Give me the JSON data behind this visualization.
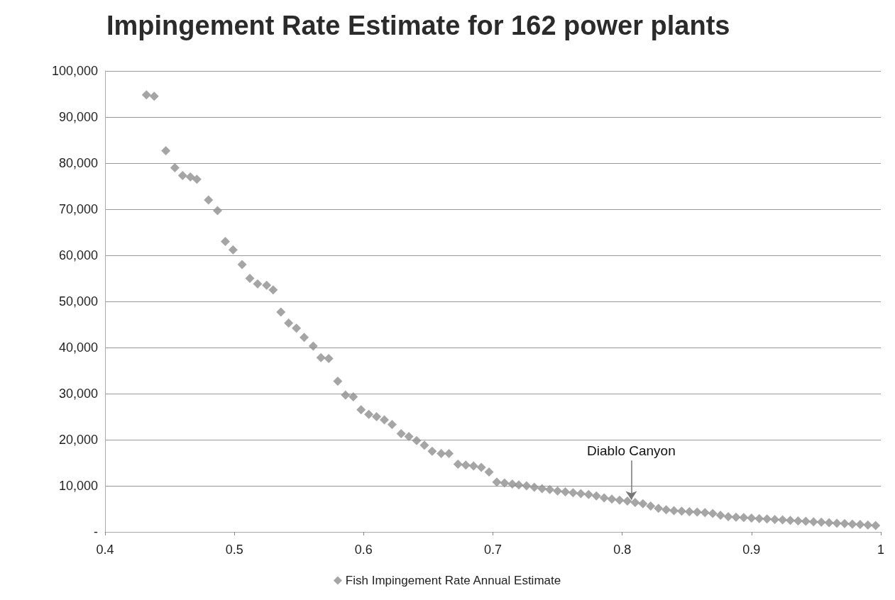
{
  "chart_data": {
    "type": "scatter",
    "title": "Impingement Rate Estimate for 162 power plants",
    "x": [
      0.432,
      0.438,
      0.447,
      0.454,
      0.46,
      0.466,
      0.471,
      0.48,
      0.487,
      0.493,
      0.499,
      0.506,
      0.512,
      0.518,
      0.525,
      0.53,
      0.536,
      0.542,
      0.548,
      0.554,
      0.561,
      0.567,
      0.573,
      0.58,
      0.586,
      0.592,
      0.598,
      0.604,
      0.61,
      0.616,
      0.622,
      0.629,
      0.635,
      0.641,
      0.647,
      0.653,
      0.66,
      0.666,
      0.673,
      0.679,
      0.685,
      0.691,
      0.697,
      0.703,
      0.709,
      0.715,
      0.72,
      0.726,
      0.732,
      0.738,
      0.744,
      0.75,
      0.756,
      0.762,
      0.768,
      0.774,
      0.78,
      0.786,
      0.792,
      0.798,
      0.804,
      0.81,
      0.816,
      0.822,
      0.828,
      0.834,
      0.84,
      0.846,
      0.852,
      0.858,
      0.864,
      0.87,
      0.876,
      0.882,
      0.888,
      0.894,
      0.9,
      0.906,
      0.912,
      0.918,
      0.924,
      0.93,
      0.936,
      0.942,
      0.948,
      0.954,
      0.96,
      0.966,
      0.972,
      0.978,
      0.984,
      0.99,
      0.996
    ],
    "series": [
      {
        "name": "Fish Impingement Rate Annual Estimate",
        "color": "#8f8f8f",
        "values": [
          94800,
          94500,
          82700,
          79000,
          77300,
          77000,
          76500,
          72000,
          69700,
          63000,
          61200,
          58000,
          55000,
          53800,
          53500,
          52500,
          47700,
          45300,
          44200,
          42200,
          40300,
          37800,
          37600,
          32700,
          29700,
          29300,
          26500,
          25500,
          25000,
          24300,
          23300,
          21300,
          20700,
          19800,
          18800,
          17500,
          17000,
          17000,
          14700,
          14500,
          14300,
          14000,
          13000,
          10800,
          10600,
          10400,
          10200,
          10000,
          9700,
          9400,
          9200,
          8900,
          8700,
          8500,
          8300,
          8100,
          7800,
          7400,
          7100,
          6900,
          6700,
          6400,
          6100,
          5600,
          5100,
          4800,
          4600,
          4500,
          4400,
          4300,
          4200,
          4000,
          3600,
          3300,
          3200,
          3100,
          3000,
          2900,
          2800,
          2700,
          2600,
          2500,
          2400,
          2300,
          2200,
          2100,
          2000,
          1900,
          1800,
          1700,
          1600,
          1500,
          1400
        ]
      }
    ],
    "xlim": [
      0.4,
      1
    ],
    "xticks": [
      0.4,
      0.5,
      0.6,
      0.7,
      0.8,
      0.9,
      1
    ],
    "ylim": [
      0,
      100000
    ],
    "yticks": [
      {
        "value": 0,
        "label": "-"
      },
      {
        "value": 10000,
        "label": "10,000"
      },
      {
        "value": 20000,
        "label": "20,000"
      },
      {
        "value": 30000,
        "label": "30,000"
      },
      {
        "value": 40000,
        "label": "40,000"
      },
      {
        "value": 50000,
        "label": "50,000"
      },
      {
        "value": 60000,
        "label": "60,000"
      },
      {
        "value": 70000,
        "label": "70,000"
      },
      {
        "value": 80000,
        "label": "80,000"
      },
      {
        "value": 90000,
        "label": "90,000"
      },
      {
        "value": 100000,
        "label": "100,000"
      }
    ],
    "annotations": [
      {
        "text": "Diablo Canyon",
        "x": 0.807,
        "y": 6500
      }
    ],
    "grid": "y",
    "legend": "bottom",
    "marker": "diamond"
  }
}
